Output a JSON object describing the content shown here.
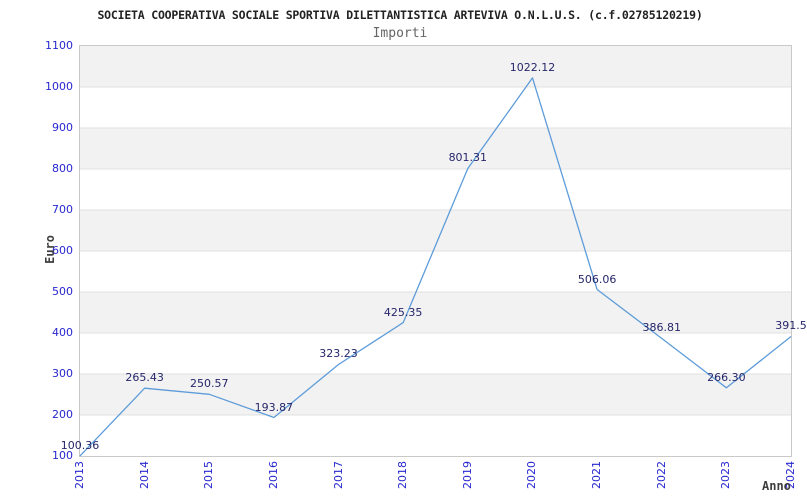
{
  "header": {
    "title": "SOCIETA COOPERATIVA SOCIALE SPORTIVA DILETTANTISTICA ARTEVIVA O.N.L.U.S. (c.f.02785120219)",
    "subtitle": "Importi"
  },
  "chart_data": {
    "type": "line",
    "title": "SOCIETA COOPERATIVA SOCIALE SPORTIVA DILETTANTISTICA ARTEVIVA O.N.L.U.S. (c.f.02785120219)",
    "subtitle": "Importi",
    "xlabel": "Anno",
    "ylabel": "Euro",
    "categories": [
      "2013",
      "2014",
      "2015",
      "2016",
      "2017",
      "2018",
      "2019",
      "2020",
      "2021",
      "2022",
      "2023",
      "2024"
    ],
    "values": [
      100.36,
      265.43,
      250.57,
      193.87,
      323.23,
      425.35,
      801.31,
      1022.12,
      506.06,
      386.81,
      266.3,
      391.5
    ],
    "value_labels": [
      "100.36",
      "265.43",
      "250.57",
      "193.87",
      "323.23",
      "425.35",
      "801.31",
      "1022.12",
      "506.06",
      "386.81",
      "266.30",
      "391.5"
    ],
    "yticks": [
      100,
      200,
      300,
      400,
      500,
      600,
      700,
      800,
      900,
      1000,
      1100
    ],
    "ylim": [
      100,
      1100
    ],
    "grid": "horizontal-bands-alternating",
    "legend_position": "none",
    "colors": {
      "line": "#5e9cd9",
      "band": "#f2f2f2",
      "gridline": "#e0e0e0",
      "plot_border": "#c9c9c9",
      "tick_label": "#2727d0",
      "value_label": "#26266b",
      "title": "#222222",
      "subtitle": "#666666",
      "axis_title": "#3f3f3f"
    }
  }
}
